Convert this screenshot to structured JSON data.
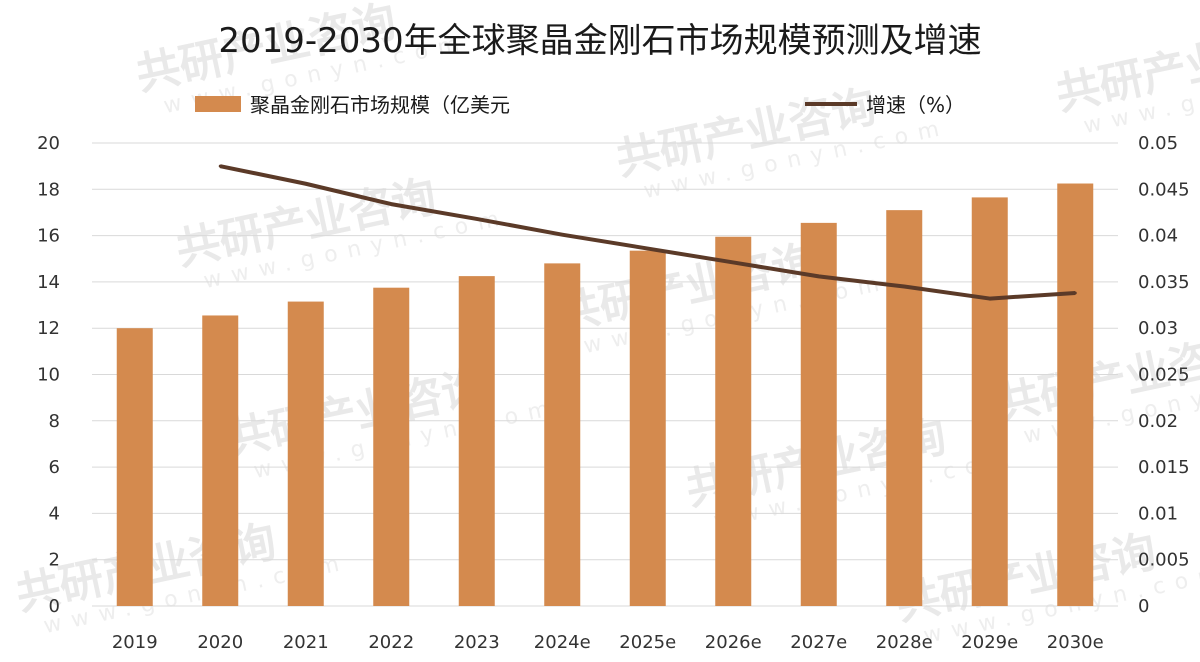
{
  "chart_data": {
    "type": "bar",
    "title": "2019-2030年全球聚晶金刚石市场规模预测及增速",
    "categories": [
      "2019",
      "2020",
      "2021",
      "2022",
      "2023",
      "2024e",
      "2025e",
      "2026e",
      "2027e",
      "2028e",
      "2029e",
      "2030e"
    ],
    "series": [
      {
        "name": "聚晶金刚石市场规模（亿美元",
        "type": "bar",
        "axis": "left",
        "color": "#d48a4e",
        "values": [
          12.0,
          12.55,
          13.15,
          13.75,
          14.25,
          14.8,
          15.35,
          15.95,
          16.55,
          17.1,
          17.65,
          18.25
        ]
      },
      {
        "name": "增速（%）",
        "type": "line",
        "axis": "right",
        "color": "#5b3a28",
        "values": [
          null,
          0.0475,
          0.0456,
          0.0434,
          0.0418,
          0.0401,
          0.0386,
          0.0371,
          0.0356,
          0.0345,
          0.0332,
          0.0338
        ]
      }
    ],
    "y_left": {
      "min": 0,
      "max": 20,
      "ticks": [
        "0",
        "2",
        "4",
        "6",
        "8",
        "10",
        "12",
        "14",
        "16",
        "18",
        "20"
      ]
    },
    "y_right": {
      "min": 0,
      "max": 0.05,
      "ticks": [
        "0",
        "0.005",
        "0.01",
        "0.015",
        "0.02",
        "0.025",
        "0.03",
        "0.035",
        "0.04",
        "0.045",
        "0.05"
      ]
    },
    "grid": true,
    "legend_position": "top"
  },
  "watermark": {
    "brand": "共研产业咨询",
    "url": "www.gonyn.com"
  }
}
